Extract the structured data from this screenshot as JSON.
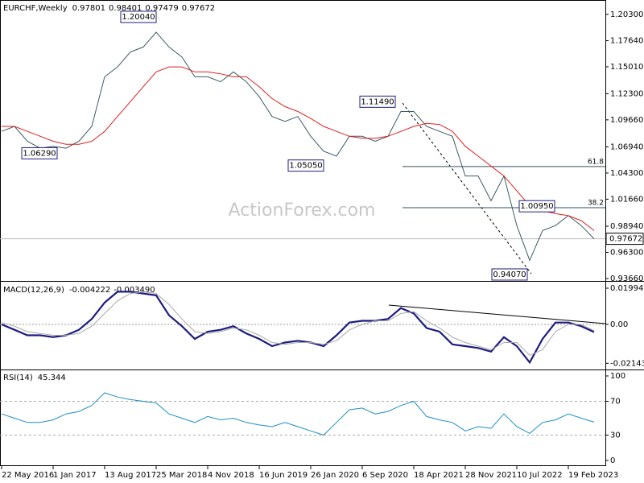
{
  "chart_data": [
    {
      "type": "line",
      "title": "EURCHF,Weekly",
      "ohlc": [
        0.97801,
        0.98401,
        0.97479,
        0.97672
      ],
      "watermark": "ActionForex.com",
      "ylim": [
        0.935,
        1.215
      ],
      "yticks": [
        {
          "value": 1.203,
          "label": "1.20300"
        },
        {
          "value": 1.1764,
          "label": "1.17640"
        },
        {
          "value": 1.1501,
          "label": "1.15010"
        },
        {
          "value": 1.123,
          "label": "1.12300"
        },
        {
          "value": 1.0966,
          "label": "1.09660"
        },
        {
          "value": 1.0694,
          "label": "1.06940"
        },
        {
          "value": 1.043,
          "label": "1.04300"
        },
        {
          "value": 1.0166,
          "label": "1.01660"
        },
        {
          "value": 0.9894,
          "label": "0.98940"
        },
        {
          "value": 0.963,
          "label": "0.96300"
        },
        {
          "value": 0.9366,
          "label": "0.93660"
        }
      ],
      "series": [
        {
          "color": "#3d5c63",
          "values": [
            1.085,
            1.09,
            1.075,
            1.068,
            1.07,
            1.068,
            1.075,
            1.09,
            1.14,
            1.15,
            1.165,
            1.17,
            1.185,
            1.17,
            1.16,
            1.14,
            1.14,
            1.135,
            1.145,
            1.135,
            1.12,
            1.1,
            1.095,
            1.1,
            1.08,
            1.065,
            1.06,
            1.08,
            1.08,
            1.075,
            1.08,
            1.105,
            1.105,
            1.09,
            1.085,
            1.08,
            1.04,
            1.04,
            1.015,
            1.04,
            0.99,
            0.955,
            0.985,
            0.99,
            1.0,
            0.99,
            0.97672
          ]
        },
        {
          "color": "#e02020",
          "values": [
            1.09,
            1.09,
            1.085,
            1.08,
            1.075,
            1.072,
            1.072,
            1.075,
            1.085,
            1.1,
            1.115,
            1.13,
            1.145,
            1.15,
            1.15,
            1.145,
            1.145,
            1.143,
            1.14,
            1.14,
            1.13,
            1.118,
            1.11,
            1.105,
            1.098,
            1.09,
            1.085,
            1.08,
            1.078,
            1.078,
            1.08,
            1.085,
            1.09,
            1.093,
            1.092,
            1.085,
            1.07,
            1.06,
            1.05,
            1.04,
            1.025,
            1.01,
            1.005,
            1.002,
            1.0,
            0.995,
            0.985
          ]
        }
      ],
      "annotations": [
        {
          "value": 1.2004,
          "label": "1.20040"
        },
        {
          "value": 1.0629,
          "label": "1.06290"
        },
        {
          "value": 1.0505,
          "label": "1.05050"
        },
        {
          "value": 1.1149,
          "label": "1.11490"
        },
        {
          "value": 0.9407,
          "label": "0.94070"
        },
        {
          "value": 1.0095,
          "label": "1.00950"
        }
      ],
      "fib_levels": [
        {
          "value": 1.0495,
          "label": "61.8"
        },
        {
          "value": 1.008,
          "label": "38.2"
        }
      ],
      "last_price": 0.97672
    },
    {
      "type": "line",
      "title": "MACD(12,26,9)",
      "header_values": [
        -0.004222,
        {
          "value": -0.00349,
          "label": "-0.003490"
        }
      ],
      "ylim": [
        -0.0244,
        0.0226
      ],
      "yticks": [
        0.019943,
        {
          "value": 0,
          "label": "0.00"
        },
        -0.021434
      ],
      "series": [
        {
          "color": "#1c1c80",
          "values": [
            0.0,
            -0.003,
            -0.006,
            -0.006,
            -0.007,
            -0.006,
            -0.003,
            0.003,
            0.012,
            0.018,
            0.018,
            0.017,
            0.016,
            0.005,
            -0.001,
            -0.008,
            -0.004,
            -0.003,
            -0.001,
            -0.005,
            -0.008,
            -0.012,
            -0.01,
            -0.009,
            -0.01,
            -0.012,
            -0.006,
            0.001,
            0.002,
            0.002,
            0.003,
            0.009,
            0.006,
            -0.002,
            -0.004,
            -0.011,
            -0.012,
            -0.013,
            -0.015,
            -0.007,
            -0.012,
            -0.021,
            -0.008,
            0.001,
            0.001,
            -0.001,
            -0.004222
          ]
        },
        {
          "color": "#a8a8a8",
          "values": [
            0.001,
            -0.001,
            -0.004,
            -0.005,
            -0.006,
            -0.006,
            -0.005,
            -0.001,
            0.006,
            0.013,
            0.017,
            0.018,
            0.017,
            0.011,
            0.003,
            -0.004,
            -0.005,
            -0.004,
            -0.002,
            -0.003,
            -0.006,
            -0.01,
            -0.011,
            -0.01,
            -0.01,
            -0.011,
            -0.009,
            -0.003,
            0.0,
            0.002,
            0.002,
            0.006,
            0.007,
            0.002,
            -0.002,
            -0.007,
            -0.01,
            -0.012,
            -0.014,
            -0.01,
            -0.01,
            -0.017,
            -0.014,
            -0.004,
            0.0,
            0.0,
            -0.00349
          ]
        }
      ]
    },
    {
      "type": "line",
      "title": "RSI(14)",
      "header_values": [
        45.344
      ],
      "ylim": [
        -5.7,
        105.7
      ],
      "yticks": [
        100,
        70,
        30,
        0
      ],
      "guides": [
        70,
        30
      ],
      "categories": [
        "22 May 2016",
        null,
        null,
        null,
        "1 Jan 2017",
        null,
        null,
        null,
        "13 Aug 2017",
        null,
        null,
        null,
        "25 Mar 2018",
        null,
        null,
        null,
        "4 Nov 2018",
        null,
        null,
        null,
        "16 Jun 2019",
        null,
        null,
        null,
        "26 Jan 2020",
        null,
        null,
        null,
        "6 Sep 2020",
        null,
        null,
        null,
        "18 Apr 2021",
        null,
        null,
        null,
        "28 Nov 2021",
        null,
        null,
        null,
        "10 Jul 2022",
        null,
        null,
        null,
        "19 Feb 2023",
        null,
        null
      ],
      "series": [
        {
          "color": "#1b8fc4",
          "values": [
            55,
            50,
            45,
            45,
            48,
            55,
            58,
            65,
            80,
            75,
            72,
            70,
            68,
            55,
            50,
            45,
            52,
            48,
            50,
            45,
            42,
            40,
            45,
            40,
            35,
            30,
            45,
            60,
            62,
            55,
            58,
            65,
            70,
            52,
            48,
            45,
            35,
            40,
            38,
            55,
            40,
            32,
            45,
            48,
            55,
            50,
            45.344
          ]
        }
      ]
    }
  ]
}
